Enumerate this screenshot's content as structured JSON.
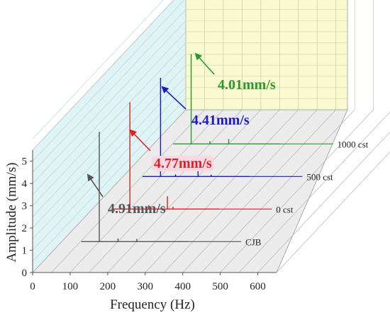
{
  "chart_data": {
    "type": "line",
    "subtype": "waterfall-3d",
    "title": "",
    "xlabel": "Frequency (Hz)",
    "ylabel": "Amplitude (mm/s)",
    "xlim": [
      0,
      650
    ],
    "ylim": [
      0,
      5.5
    ],
    "x_ticks": [
      "0",
      "100",
      "200",
      "300",
      "400",
      "500",
      "600"
    ],
    "y_ticks": [
      "0",
      "1",
      "2",
      "3",
      "4",
      "5"
    ],
    "grid": true,
    "series": [
      {
        "name": "CJB",
        "color": "#555555",
        "peak_label": "4.91mm/s",
        "peak_label_bg": "",
        "points": [
          [
            100,
            4.91
          ],
          [
            150,
            0.12
          ],
          [
            200,
            0.1
          ]
        ]
      },
      {
        "name": "0 cst",
        "color": "#e02020",
        "peak_label": "4.77mm/s",
        "peak_label_bg": "#f8d8e4",
        "points": [
          [
            100,
            4.77
          ],
          [
            150,
            0.15
          ],
          [
            200,
            0.55
          ],
          [
            215,
            0.08
          ]
        ]
      },
      {
        "name": "500 cst",
        "color": "#1a1acc",
        "peak_label": "4.41mm/s",
        "peak_label_bg": "",
        "points": [
          [
            100,
            4.41
          ],
          [
            140,
            0.07
          ],
          [
            200,
            0.32
          ],
          [
            235,
            0.06
          ]
        ]
      },
      {
        "name": "1000 cst",
        "color": "#2a9a2a",
        "peak_label": "4.01mm/s",
        "peak_label_bg": "",
        "points": [
          [
            100,
            4.01
          ],
          [
            150,
            0.1
          ],
          [
            200,
            0.2
          ]
        ]
      }
    ]
  }
}
